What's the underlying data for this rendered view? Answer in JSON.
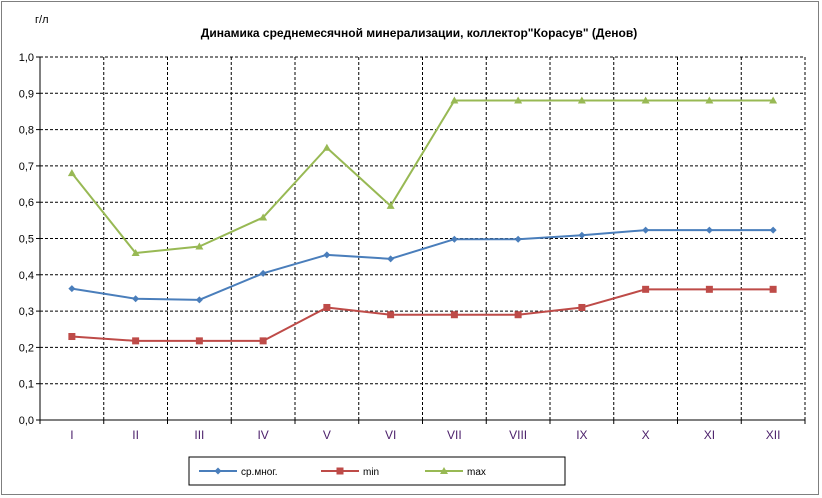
{
  "chart_data": {
    "type": "line",
    "title": "Динамика среднемесячной минерализации, коллектор\"Корасув\"  (Денов)",
    "ylabel": "г/л",
    "xlabel": "",
    "categories": [
      "I",
      "II",
      "III",
      "IV",
      "V",
      "VI",
      "VII",
      "VIII",
      "IX",
      "X",
      "XI",
      "XII"
    ],
    "ylim": [
      0,
      1.0
    ],
    "yticks": [
      "0,0",
      "0,1",
      "0,2",
      "0,3",
      "0,4",
      "0,5",
      "0,6",
      "0,7",
      "0,8",
      "0,9",
      "1,0"
    ],
    "grid": true,
    "legend_position": "bottom",
    "series": [
      {
        "name": "ср.мног.",
        "color": "#4a7ebb",
        "marker": "diamond",
        "values": [
          0.362,
          0.334,
          0.331,
          0.404,
          0.455,
          0.444,
          0.498,
          0.498,
          0.509,
          0.523,
          0.523,
          0.523
        ]
      },
      {
        "name": "min",
        "color": "#be4b48",
        "marker": "square",
        "values": [
          0.23,
          0.218,
          0.218,
          0.218,
          0.31,
          0.29,
          0.29,
          0.29,
          0.31,
          0.36,
          0.36,
          0.36
        ]
      },
      {
        "name": "max",
        "color": "#98b954",
        "marker": "triangle",
        "values": [
          0.68,
          0.46,
          0.478,
          0.558,
          0.75,
          0.59,
          0.88,
          0.88,
          0.88,
          0.88,
          0.88,
          0.88
        ]
      }
    ]
  }
}
